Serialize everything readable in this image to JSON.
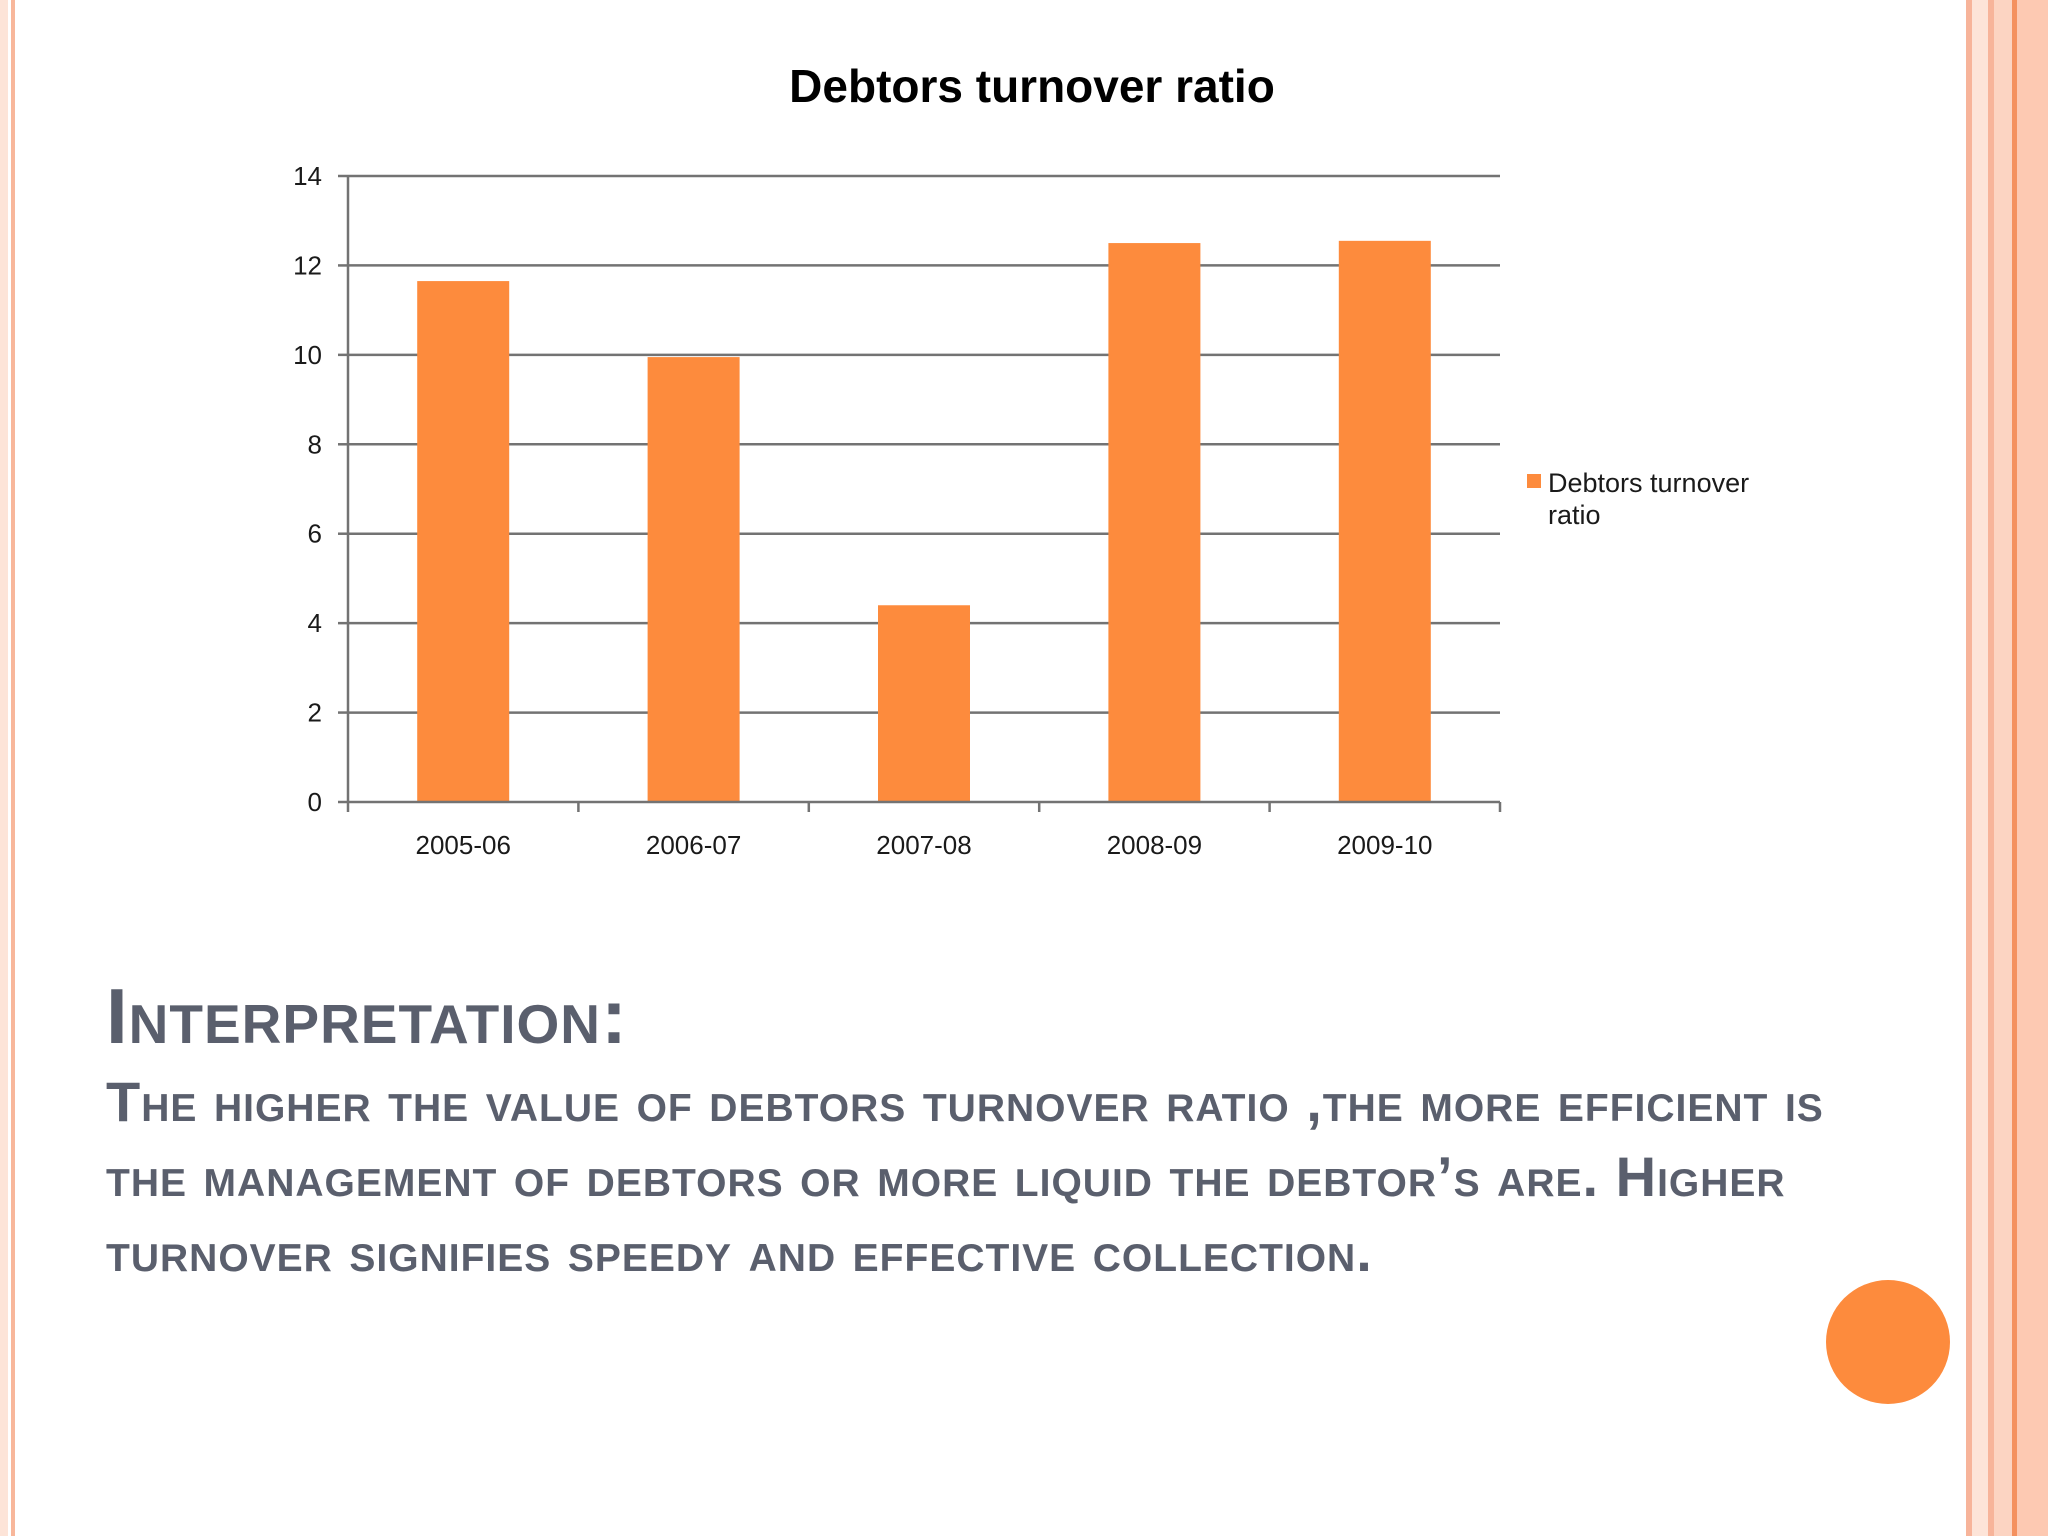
{
  "chart_data": {
    "type": "bar",
    "title": "Debtors turnover ratio",
    "categories": [
      "2005-06",
      "2006-07",
      "2007-08",
      "2008-09",
      "2009-10"
    ],
    "series": [
      {
        "name": "Debtors turnover ratio",
        "values": [
          11.65,
          9.95,
          4.4,
          12.5,
          12.55
        ]
      }
    ],
    "ylim": [
      0,
      14
    ],
    "yticks": [
      "0",
      "2",
      "4",
      "6",
      "8",
      "10",
      "12",
      "14"
    ],
    "grid": true,
    "legend": "right",
    "bar_color": "#fd8b3d"
  },
  "interpretation": {
    "heading": "Interpretation:",
    "body": "The higher the value of debtors turnover ratio ,the more efficient is the management of debtors or more liquid the debtor’s are. Higher turnover signifies speedy and effective collection."
  },
  "colors": {
    "accent": "#fd8b3d",
    "text": "#5a5f6d",
    "border": "#f8b79b"
  }
}
